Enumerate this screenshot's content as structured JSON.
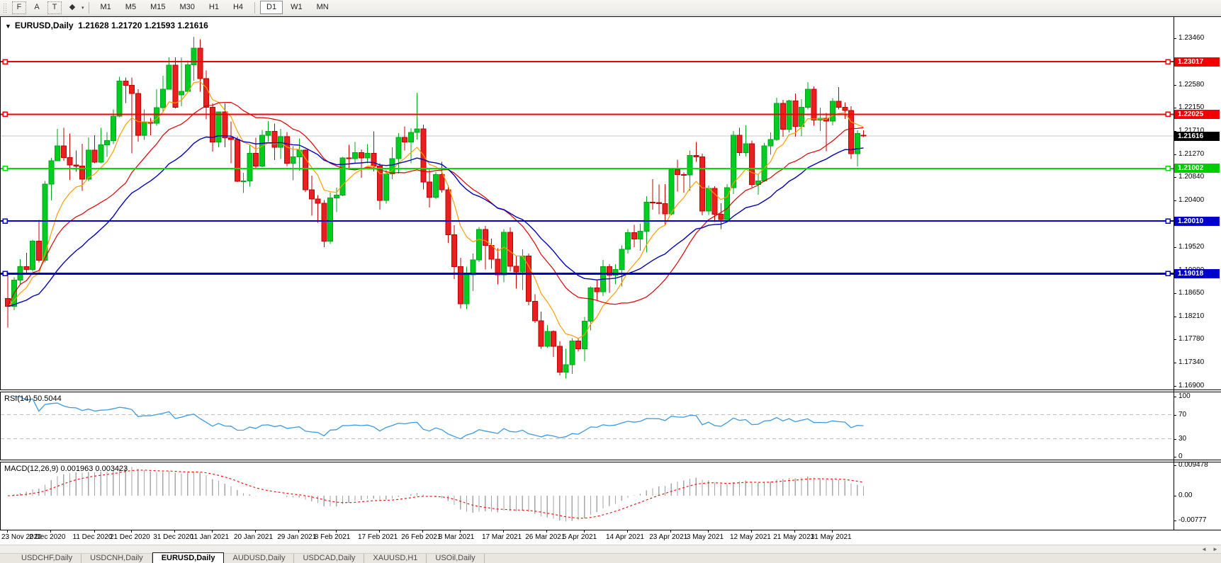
{
  "toolbar": {
    "icons": [
      {
        "name": "indicator-frame-icon",
        "glyph": "F",
        "box": true
      },
      {
        "name": "annotation-a-icon",
        "glyph": "A",
        "box": false
      },
      {
        "name": "text-label-icon",
        "glyph": "T",
        "box": true
      },
      {
        "name": "draw-objects-icon",
        "glyph": "◆",
        "box": false
      }
    ],
    "objects_dropdown_glyph": "▾",
    "timeframes": [
      "M1",
      "M5",
      "M15",
      "M30",
      "H1",
      "H4",
      "D1",
      "W1",
      "MN"
    ],
    "active_timeframe": "D1"
  },
  "chart": {
    "title_symbol": "EURUSD,Daily",
    "title_ohlc": "1.21628 1.21720 1.21593 1.21616",
    "dropdown_glyph": "▼"
  },
  "indicators": {
    "rsi": {
      "label": "RSI(14) 50.5044",
      "scale_labels": [
        "100",
        "70",
        "30",
        "0"
      ],
      "scale_values": [
        100,
        70,
        30,
        0
      ]
    },
    "macd": {
      "label": "MACD(12,26,9) 0.001963 0.003423",
      "axis_labels": [
        "0.009478",
        "0.00",
        "-0.00777"
      ],
      "axis_values": [
        0.009478,
        0,
        -0.00777
      ]
    }
  },
  "price_axis": {
    "ticks": [
      "1.23460",
      "1.23020",
      "1.22580",
      "1.22150",
      "1.21710",
      "1.21270",
      "1.20840",
      "1.20400",
      "1.19960",
      "1.19520",
      "1.19080",
      "1.18650",
      "1.18210",
      "1.17780",
      "1.17340",
      "1.16900"
    ],
    "badges": [
      {
        "text": "1.23017",
        "bg": "#f20000"
      },
      {
        "text": "1.22025",
        "bg": "#f20000"
      },
      {
        "text": "1.21616",
        "bg": "#000000"
      },
      {
        "text": "1.21002",
        "bg": "#00cc00"
      },
      {
        "text": "1.20010",
        "bg": "#0000cc"
      },
      {
        "text": "1.19018",
        "bg": "#0000cc"
      }
    ]
  },
  "scrollbar": {
    "left_arrow": "◄",
    "right_arrow": "►"
  },
  "tabs": [
    {
      "label": "USDCHF,Daily",
      "active": false
    },
    {
      "label": "USDCNH,Daily",
      "active": false
    },
    {
      "label": "EURUSD,Daily",
      "active": true
    },
    {
      "label": "AUDUSD,Daily",
      "active": false
    },
    {
      "label": "USDCAD,Daily",
      "active": false
    },
    {
      "label": "XAUUSD,H1",
      "active": false
    },
    {
      "label": "USOil,Daily",
      "active": false
    }
  ],
  "chart_data": {
    "type": "candlestick",
    "symbol": "EURUSD",
    "timeframe": "Daily",
    "current_bar": {
      "open": 1.21628,
      "high": 1.2172,
      "low": 1.21593,
      "close": 1.21616
    },
    "current_price": 1.21616,
    "horizontal_lines": [
      {
        "price": 1.23017,
        "color": "#f20000",
        "width": 2
      },
      {
        "price": 1.22025,
        "color": "#f20000",
        "width": 2
      },
      {
        "price": 1.21002,
        "color": "#00dd00",
        "width": 2
      },
      {
        "price": 1.2001,
        "color": "#0000cc",
        "width": 2
      },
      {
        "price": 1.19018,
        "color": "#0000cc",
        "width": 3
      }
    ],
    "moving_averages": [
      {
        "name": "fast",
        "method": "ema",
        "period": 8,
        "color": "#ff9d00"
      },
      {
        "name": "medium",
        "method": "sma",
        "period": 20,
        "color": "#dd0000"
      },
      {
        "name": "slow",
        "method": "ema",
        "period": 30,
        "color": "#0000bb"
      }
    ],
    "rsi": {
      "period": 14,
      "current": 50.5044,
      "levels": [
        70,
        30
      ],
      "range": [
        0,
        100
      ],
      "color": "#3b9ae1"
    },
    "macd": {
      "fast": 12,
      "slow": 26,
      "signal": 9,
      "current_macd": 0.001963,
      "current_signal": 0.003423,
      "histogram_color": "#a6a6a6",
      "signal_color": "#ff0000",
      "axis_range": [
        0.009478,
        -0.00777
      ]
    },
    "x_axis_dates": [
      "23 Nov 2020",
      "2 Dec 2020",
      "11 Dec 2020",
      "21 Dec 2020",
      "31 Dec 2020",
      "11 Jan 2021",
      "20 Jan 2021",
      "29 Jan 2021",
      "8 Feb 2021",
      "17 Feb 2021",
      "26 Feb 2021",
      "8 Mar 2021",
      "17 Mar 2021",
      "26 Mar 2021",
      "5 Apr 2021",
      "14 Apr 2021",
      "23 Apr 2021",
      "3 May 2021",
      "12 May 2021",
      "21 May 2021",
      "31 May 2021"
    ],
    "x_tick_bar_indices": [
      0,
      7,
      14,
      20,
      27,
      33,
      40,
      47,
      53,
      60,
      67,
      73,
      80,
      87,
      93,
      100,
      107,
      113,
      120,
      127,
      133
    ],
    "candles": [
      [
        "2020-11-23",
        1.1855,
        1.1906,
        1.18,
        1.184
      ],
      [
        "2020-11-24",
        1.184,
        1.1895,
        1.1833,
        1.189
      ],
      [
        "2020-11-25",
        1.189,
        1.1929,
        1.1881,
        1.1915
      ],
      [
        "2020-11-26",
        1.1915,
        1.1941,
        1.1903,
        1.191
      ],
      [
        "2020-11-27",
        1.191,
        1.1966,
        1.1906,
        1.1963
      ],
      [
        "2020-11-30",
        1.1963,
        1.2003,
        1.1923,
        1.1927
      ],
      [
        "2020-12-01",
        1.1927,
        1.2077,
        1.1923,
        1.2071
      ],
      [
        "2020-12-02",
        1.2071,
        1.212,
        1.204,
        1.2115
      ],
      [
        "2020-12-03",
        1.2115,
        1.2175,
        1.2114,
        1.2143
      ],
      [
        "2020-12-04",
        1.2143,
        1.2177,
        1.2115,
        1.2121
      ],
      [
        "2020-12-07",
        1.2121,
        1.2166,
        1.2079,
        1.2107
      ],
      [
        "2020-12-08",
        1.2107,
        1.2134,
        1.2094,
        1.2105
      ],
      [
        "2020-12-09",
        1.2105,
        1.2147,
        1.2058,
        1.208
      ],
      [
        "2020-12-10",
        1.208,
        1.2159,
        1.2076,
        1.2135
      ],
      [
        "2020-12-11",
        1.2135,
        1.2163,
        1.211,
        1.2112
      ],
      [
        "2020-12-14",
        1.2112,
        1.2177,
        1.211,
        1.2145
      ],
      [
        "2020-12-15",
        1.2145,
        1.2169,
        1.2122,
        1.2153
      ],
      [
        "2020-12-16",
        1.2153,
        1.2212,
        1.2146,
        1.2199
      ],
      [
        "2020-12-17",
        1.2199,
        1.2273,
        1.2197,
        1.2265
      ],
      [
        "2020-12-18",
        1.2265,
        1.2272,
        1.2224,
        1.2257
      ],
      [
        "2020-12-21",
        1.2257,
        1.2272,
        1.2129,
        1.2242
      ],
      [
        "2020-12-22",
        1.2242,
        1.225,
        1.2151,
        1.2163
      ],
      [
        "2020-12-23",
        1.2163,
        1.2212,
        1.2154,
        1.2187
      ],
      [
        "2020-12-24",
        1.2187,
        1.2196,
        1.2163,
        1.2186
      ],
      [
        "2020-12-28",
        1.2186,
        1.225,
        1.2181,
        1.2215
      ],
      [
        "2020-12-29",
        1.2215,
        1.2275,
        1.2208,
        1.225
      ],
      [
        "2020-12-30",
        1.225,
        1.231,
        1.2249,
        1.2295
      ],
      [
        "2020-12-31",
        1.2295,
        1.231,
        1.2214,
        1.2216
      ],
      [
        "2021-01-04",
        1.2239,
        1.231,
        1.2218,
        1.2246
      ],
      [
        "2021-01-05",
        1.2246,
        1.2304,
        1.2244,
        1.2296
      ],
      [
        "2021-01-06",
        1.2296,
        1.2349,
        1.2266,
        1.2327
      ],
      [
        "2021-01-07",
        1.2327,
        1.2344,
        1.2245,
        1.227
      ],
      [
        "2021-01-08",
        1.227,
        1.2285,
        1.2193,
        1.2216
      ],
      [
        "2021-01-11",
        1.2216,
        1.2223,
        1.2132,
        1.215
      ],
      [
        "2021-01-12",
        1.215,
        1.2208,
        1.214,
        1.2207
      ],
      [
        "2021-01-13",
        1.2207,
        1.2223,
        1.214,
        1.2158
      ],
      [
        "2021-01-14",
        1.2158,
        1.2189,
        1.211,
        1.2155
      ],
      [
        "2021-01-15",
        1.2155,
        1.216,
        1.2075,
        1.2076
      ],
      [
        "2021-01-18",
        1.2076,
        1.2092,
        1.2054,
        1.2077
      ],
      [
        "2021-01-19",
        1.2077,
        1.2144,
        1.2066,
        1.2129
      ],
      [
        "2021-01-20",
        1.2129,
        1.2158,
        1.2101,
        1.2105
      ],
      [
        "2021-01-21",
        1.2105,
        1.2173,
        1.2103,
        1.2163
      ],
      [
        "2021-01-22",
        1.2163,
        1.219,
        1.2151,
        1.217
      ],
      [
        "2021-01-25",
        1.217,
        1.2185,
        1.2116,
        1.214
      ],
      [
        "2021-01-26",
        1.214,
        1.2175,
        1.2118,
        1.216
      ],
      [
        "2021-01-27",
        1.216,
        1.2169,
        1.2105,
        1.211
      ],
      [
        "2021-01-28",
        1.211,
        1.2142,
        1.2078,
        1.2122
      ],
      [
        "2021-01-29",
        1.2122,
        1.2157,
        1.2096,
        1.2135
      ],
      [
        "2021-02-01",
        1.2135,
        1.2136,
        1.2056,
        1.206
      ],
      [
        "2021-02-02",
        1.206,
        1.2087,
        1.2011,
        1.2043
      ],
      [
        "2021-02-03",
        1.2043,
        1.205,
        1.1998,
        1.2035
      ],
      [
        "2021-02-04",
        1.2035,
        1.2041,
        1.1952,
        1.1963
      ],
      [
        "2021-02-05",
        1.1963,
        1.2055,
        1.1958,
        1.2045
      ],
      [
        "2021-02-08",
        1.2045,
        1.2064,
        1.2018,
        1.205
      ],
      [
        "2021-02-09",
        1.205,
        1.2122,
        1.2048,
        1.212
      ],
      [
        "2021-02-10",
        1.212,
        1.2145,
        1.21,
        1.2119
      ],
      [
        "2021-02-11",
        1.2119,
        1.215,
        1.211,
        1.213
      ],
      [
        "2021-02-12",
        1.213,
        1.2136,
        1.2083,
        1.212
      ],
      [
        "2021-02-15",
        1.212,
        1.2146,
        1.211,
        1.2129
      ],
      [
        "2021-02-16",
        1.2129,
        1.217,
        1.2095,
        1.2105
      ],
      [
        "2021-02-17",
        1.2105,
        1.211,
        1.2023,
        1.204
      ],
      [
        "2021-02-18",
        1.204,
        1.2098,
        1.2034,
        1.209
      ],
      [
        "2021-02-19",
        1.209,
        1.214,
        1.208,
        1.2119
      ],
      [
        "2021-02-22",
        1.2119,
        1.2167,
        1.2091,
        1.2159
      ],
      [
        "2021-02-23",
        1.2159,
        1.218,
        1.2134,
        1.215
      ],
      [
        "2021-02-24",
        1.215,
        1.2176,
        1.211,
        1.2168
      ],
      [
        "2021-02-25",
        1.2168,
        1.2243,
        1.2155,
        1.2175
      ],
      [
        "2021-02-26",
        1.2175,
        1.2183,
        1.2061,
        1.2075
      ],
      [
        "2021-03-01",
        1.2075,
        1.2101,
        1.2027,
        1.2046
      ],
      [
        "2021-03-02",
        1.2046,
        1.2094,
        1.2043,
        1.2089
      ],
      [
        "2021-03-03",
        1.2089,
        1.2113,
        1.2055,
        1.206
      ],
      [
        "2021-03-04",
        1.206,
        1.2069,
        1.196,
        1.1975
      ],
      [
        "2021-03-05",
        1.1975,
        1.1993,
        1.1892,
        1.1915
      ],
      [
        "2021-03-08",
        1.1915,
        1.1932,
        1.1836,
        1.1845
      ],
      [
        "2021-03-09",
        1.1845,
        1.1915,
        1.1835,
        1.19
      ],
      [
        "2021-03-10",
        1.19,
        1.194,
        1.1869,
        1.1928
      ],
      [
        "2021-03-11",
        1.1928,
        1.199,
        1.1924,
        1.1985
      ],
      [
        "2021-03-12",
        1.1985,
        1.1992,
        1.191,
        1.1955
      ],
      [
        "2021-03-15",
        1.1955,
        1.1968,
        1.1911,
        1.1929
      ],
      [
        "2021-03-16",
        1.1929,
        1.195,
        1.1882,
        1.19
      ],
      [
        "2021-03-17",
        1.19,
        1.1986,
        1.1886,
        1.198
      ],
      [
        "2021-03-18",
        1.198,
        1.1989,
        1.1906,
        1.1916
      ],
      [
        "2021-03-19",
        1.1916,
        1.1936,
        1.1874,
        1.1905
      ],
      [
        "2021-03-22",
        1.1905,
        1.1948,
        1.1871,
        1.1935
      ],
      [
        "2021-03-23",
        1.1935,
        1.194,
        1.1842,
        1.185
      ],
      [
        "2021-03-24",
        1.185,
        1.1863,
        1.1809,
        1.1813
      ],
      [
        "2021-03-25",
        1.1813,
        1.183,
        1.176,
        1.1765
      ],
      [
        "2021-03-26",
        1.1765,
        1.1805,
        1.1762,
        1.1793
      ],
      [
        "2021-03-29",
        1.1793,
        1.1795,
        1.1745,
        1.1765
      ],
      [
        "2021-03-30",
        1.1765,
        1.1774,
        1.171,
        1.1716
      ],
      [
        "2021-03-31",
        1.1716,
        1.176,
        1.1704,
        1.173
      ],
      [
        "2021-04-01",
        1.173,
        1.178,
        1.1713,
        1.1775
      ],
      [
        "2021-04-02",
        1.1775,
        1.178,
        1.1755,
        1.176
      ],
      [
        "2021-04-05",
        1.176,
        1.182,
        1.1737,
        1.1812
      ],
      [
        "2021-04-06",
        1.1812,
        1.1878,
        1.1795,
        1.1875
      ],
      [
        "2021-04-07",
        1.1875,
        1.189,
        1.1852,
        1.1868
      ],
      [
        "2021-04-08",
        1.1868,
        1.1928,
        1.186,
        1.1915
      ],
      [
        "2021-04-09",
        1.1915,
        1.192,
        1.1866,
        1.1899
      ],
      [
        "2021-04-12",
        1.1899,
        1.192,
        1.1882,
        1.191
      ],
      [
        "2021-04-13",
        1.191,
        1.1955,
        1.1878,
        1.1948
      ],
      [
        "2021-04-14",
        1.1948,
        1.1986,
        1.194,
        1.1979
      ],
      [
        "2021-04-15",
        1.1979,
        1.1994,
        1.1952,
        1.1967
      ],
      [
        "2021-04-16",
        1.1967,
        1.1996,
        1.1945,
        1.1982
      ],
      [
        "2021-04-19",
        1.1982,
        1.2048,
        1.1942,
        1.2037
      ],
      [
        "2021-04-20",
        1.2037,
        1.208,
        1.2023,
        1.2036
      ],
      [
        "2021-04-21",
        1.2036,
        1.207,
        1.2014,
        1.2034
      ],
      [
        "2021-04-22",
        1.2034,
        1.2071,
        1.1994,
        1.2015
      ],
      [
        "2021-04-23",
        1.2015,
        1.21,
        1.2012,
        1.2098
      ],
      [
        "2021-04-26",
        1.2098,
        1.2117,
        1.2057,
        1.2089
      ],
      [
        "2021-04-27",
        1.2089,
        1.2093,
        1.2055,
        1.2088
      ],
      [
        "2021-04-28",
        1.2088,
        1.2134,
        1.2058,
        1.2125
      ],
      [
        "2021-04-29",
        1.2125,
        1.215,
        1.2113,
        1.2122
      ],
      [
        "2021-04-30",
        1.2122,
        1.2128,
        1.2012,
        1.202
      ],
      [
        "2021-05-03",
        1.202,
        1.2068,
        1.2013,
        1.2063
      ],
      [
        "2021-05-04",
        1.2063,
        1.2067,
        1.1999,
        1.2014
      ],
      [
        "2021-05-05",
        1.2014,
        1.2035,
        1.1986,
        1.2004
      ],
      [
        "2021-05-06",
        1.2004,
        1.2071,
        1.2,
        1.2064
      ],
      [
        "2021-05-07",
        1.2064,
        1.2171,
        1.2052,
        1.2163
      ],
      [
        "2021-05-10",
        1.2163,
        1.2177,
        1.2124,
        1.213
      ],
      [
        "2021-05-11",
        1.213,
        1.2182,
        1.2123,
        1.2147
      ],
      [
        "2021-05-12",
        1.2147,
        1.2153,
        1.2065,
        1.207
      ],
      [
        "2021-05-13",
        1.207,
        1.209,
        1.2051,
        1.2077
      ],
      [
        "2021-05-14",
        1.2077,
        1.2148,
        1.2075,
        1.2143
      ],
      [
        "2021-05-17",
        1.2143,
        1.2168,
        1.2126,
        1.2155
      ],
      [
        "2021-05-18",
        1.2155,
        1.2234,
        1.2152,
        1.2223
      ],
      [
        "2021-05-19",
        1.2223,
        1.223,
        1.216,
        1.2174
      ],
      [
        "2021-05-20",
        1.2174,
        1.223,
        1.2168,
        1.2228
      ],
      [
        "2021-05-21",
        1.2228,
        1.2242,
        1.216,
        1.218
      ],
      [
        "2021-05-24",
        1.218,
        1.2231,
        1.2161,
        1.2216
      ],
      [
        "2021-05-25",
        1.2216,
        1.2263,
        1.2212,
        1.225
      ],
      [
        "2021-05-26",
        1.225,
        1.2255,
        1.2181,
        1.2192
      ],
      [
        "2021-05-27",
        1.2192,
        1.2215,
        1.2171,
        1.2195
      ],
      [
        "2021-05-28",
        1.2195,
        1.2205,
        1.2133,
        1.219
      ],
      [
        "2021-05-31",
        1.219,
        1.2233,
        1.2182,
        1.2227
      ],
      [
        "2021-06-01",
        1.2227,
        1.2254,
        1.2212,
        1.2216
      ],
      [
        "2021-06-02",
        1.2216,
        1.2225,
        1.2194,
        1.221
      ],
      [
        "2021-06-03",
        1.221,
        1.2218,
        1.2118,
        1.2128
      ],
      [
        "2021-06-04",
        1.2128,
        1.2172,
        1.2104,
        1.2166
      ],
      [
        "2021-06-07",
        1.21628,
        1.2172,
        1.21593,
        1.21616
      ]
    ],
    "candle_colors": {
      "up_fill": "#00cc22",
      "up_stroke": "#00a51c",
      "down_fill": "#e82020",
      "down_stroke": "#c00000"
    }
  }
}
